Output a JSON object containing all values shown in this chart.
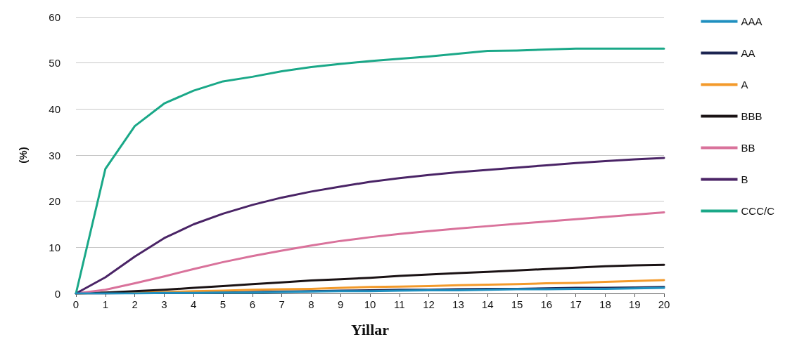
{
  "chart_data": {
    "type": "line",
    "xlabel": "Yillar",
    "ylabel": "(%)",
    "x": [
      0,
      1,
      2,
      3,
      4,
      5,
      6,
      7,
      8,
      9,
      10,
      11,
      12,
      13,
      14,
      15,
      16,
      17,
      18,
      19,
      20
    ],
    "xlim": [
      0,
      20
    ],
    "xticks": [
      0,
      1,
      2,
      3,
      4,
      5,
      6,
      7,
      8,
      9,
      10,
      11,
      12,
      13,
      14,
      15,
      16,
      17,
      18,
      19,
      20
    ],
    "ylim": [
      0,
      60
    ],
    "yticks": [
      0,
      10,
      20,
      30,
      40,
      50,
      60
    ],
    "grid": "y",
    "legend": "right",
    "marker": "none",
    "line_style": "solid",
    "series": [
      {
        "name": "AAA",
        "color": "#1f8fbf",
        "values": [
          0,
          0,
          0,
          0.1,
          0.1,
          0.2,
          0.2,
          0.3,
          0.4,
          0.5,
          0.5,
          0.6,
          0.7,
          0.7,
          0.8,
          0.9,
          0.9,
          1,
          1,
          1.1,
          1.2
        ]
      },
      {
        "name": "AA",
        "color": "#1c2451",
        "values": [
          0,
          0,
          0.1,
          0.1,
          0.2,
          0.2,
          0.3,
          0.4,
          0.5,
          0.6,
          0.7,
          0.8,
          0.8,
          0.9,
          1,
          1,
          1.1,
          1.2,
          1.2,
          1.3,
          1.4
        ]
      },
      {
        "name": "A",
        "color": "#f39a2b",
        "values": [
          0,
          0.1,
          0.2,
          0.3,
          0.5,
          0.6,
          0.8,
          0.9,
          1,
          1.2,
          1.4,
          1.5,
          1.6,
          1.8,
          1.9,
          2,
          2.2,
          2.3,
          2.5,
          2.7,
          2.9
        ]
      },
      {
        "name": "BBB",
        "color": "#1a1214",
        "values": [
          0,
          0.2,
          0.5,
          0.8,
          1.2,
          1.6,
          2,
          2.4,
          2.8,
          3.1,
          3.4,
          3.8,
          4.1,
          4.4,
          4.7,
          5,
          5.3,
          5.6,
          5.9,
          6.1,
          6.2
        ]
      },
      {
        "name": "BB",
        "color": "#d9729b",
        "values": [
          0,
          0.8,
          2.2,
          3.7,
          5.3,
          6.8,
          8.1,
          9.3,
          10.4,
          11.4,
          12.2,
          12.9,
          13.5,
          14.1,
          14.6,
          15.1,
          15.6,
          16.1,
          16.6,
          17.1,
          17.6
        ]
      },
      {
        "name": "B",
        "color": "#4a2466",
        "values": [
          0,
          3.5,
          8,
          12,
          15,
          17.3,
          19.2,
          20.8,
          22.1,
          23.2,
          24.2,
          25,
          25.7,
          26.3,
          26.8,
          27.3,
          27.8,
          28.3,
          28.7,
          29.1,
          29.4
        ]
      },
      {
        "name": "CCC/C",
        "color": "#1aa888",
        "values": [
          0,
          27,
          36.3,
          41.2,
          44,
          46,
          47,
          48.2,
          49.1,
          49.8,
          50.4,
          50.9,
          51.4,
          52,
          52.6,
          52.7,
          52.9,
          53.1,
          53.1,
          53.1,
          53.1
        ]
      }
    ]
  }
}
